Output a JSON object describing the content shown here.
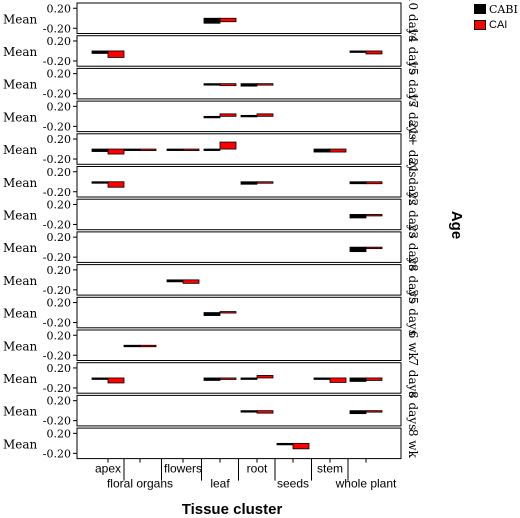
{
  "chart_data": {
    "type": "bar",
    "xlabel": "Tissue cluster",
    "ylabel": "Mean",
    "panel_label": "Age",
    "y_ticks": [
      "0.20",
      "-0.20"
    ],
    "ylim": [
      -0.2,
      0.2
    ],
    "categories": [
      "apex",
      "floral organs",
      "flowers",
      "leaf",
      "root",
      "seeds",
      "stem",
      "whole plant"
    ],
    "series": [
      {
        "name": "CABI",
        "color": "#000000"
      },
      {
        "name": "CAI",
        "color": "#ff0000"
      }
    ],
    "panels": [
      {
        "age": "10 days",
        "cabi": [
          null,
          null,
          null,
          -0.1,
          null,
          null,
          null,
          null
        ],
        "cai": [
          null,
          null,
          null,
          -0.07,
          null,
          null,
          null,
          null
        ]
      },
      {
        "age": "14 days",
        "cabi": [
          -0.05,
          null,
          null,
          null,
          null,
          null,
          null,
          -0.03
        ],
        "cai": [
          -0.13,
          null,
          null,
          null,
          null,
          null,
          null,
          -0.06
        ]
      },
      {
        "age": "15 days",
        "cabi": [
          null,
          null,
          null,
          -0.03,
          -0.05,
          null,
          null,
          null
        ],
        "cai": [
          null,
          null,
          null,
          -0.04,
          -0.02,
          null,
          null,
          null
        ]
      },
      {
        "age": "17 days",
        "cabi": [
          null,
          null,
          null,
          0.0,
          0.02,
          null,
          null,
          null
        ],
        "cai": [
          null,
          null,
          null,
          0.05,
          0.05,
          null,
          null,
          null
        ]
      },
      {
        "age": "21+ days",
        "cabi": [
          -0.05,
          -0.01,
          -0.02,
          -0.01,
          null,
          null,
          -0.06,
          null
        ],
        "cai": [
          -0.1,
          -0.02,
          -0.03,
          0.14,
          null,
          null,
          -0.06,
          null
        ]
      },
      {
        "age": "21 days",
        "cabi": [
          -0.03,
          null,
          null,
          null,
          -0.05,
          null,
          null,
          -0.04
        ],
        "cai": [
          -0.11,
          null,
          null,
          null,
          -0.02,
          null,
          null,
          -0.04
        ]
      },
      {
        "age": "22 days",
        "cabi": [
          null,
          null,
          null,
          null,
          null,
          null,
          null,
          -0.07
        ],
        "cai": [
          null,
          null,
          null,
          null,
          null,
          null,
          null,
          -0.01
        ]
      },
      {
        "age": "23 days",
        "cabi": [
          null,
          null,
          null,
          null,
          null,
          null,
          null,
          -0.09
        ],
        "cai": [
          null,
          null,
          null,
          null,
          null,
          null,
          null,
          -0.01
        ]
      },
      {
        "age": "28 days",
        "cabi": [
          null,
          null,
          -0.04,
          null,
          null,
          null,
          null,
          null
        ],
        "cai": [
          null,
          null,
          -0.07,
          null,
          null,
          null,
          null,
          null
        ]
      },
      {
        "age": "35 days",
        "cabi": [
          null,
          null,
          null,
          -0.06,
          null,
          null,
          null,
          null
        ],
        "cai": [
          null,
          null,
          null,
          0.02,
          null,
          null,
          null,
          null
        ]
      },
      {
        "age": "6 wk",
        "cabi": [
          null,
          0.0,
          null,
          null,
          null,
          null,
          null,
          null
        ],
        "cai": [
          null,
          0.0,
          null,
          null,
          null,
          null,
          null,
          null
        ]
      },
      {
        "age": "7 days",
        "cabi": [
          0.0,
          null,
          null,
          -0.05,
          0.0,
          null,
          -0.03,
          -0.07
        ],
        "cai": [
          -0.1,
          null,
          null,
          -0.01,
          0.05,
          null,
          -0.09,
          -0.05
        ]
      },
      {
        "age": "8 days",
        "cabi": [
          null,
          null,
          null,
          null,
          -0.01,
          null,
          null,
          -0.06
        ],
        "cai": [
          null,
          null,
          null,
          null,
          -0.05,
          null,
          null,
          0.0
        ]
      },
      {
        "age": "8 wk",
        "cabi": [
          null,
          null,
          null,
          null,
          null,
          -0.02,
          null,
          null
        ],
        "cai": [
          null,
          null,
          null,
          null,
          null,
          -0.11,
          null,
          null
        ]
      }
    ]
  }
}
